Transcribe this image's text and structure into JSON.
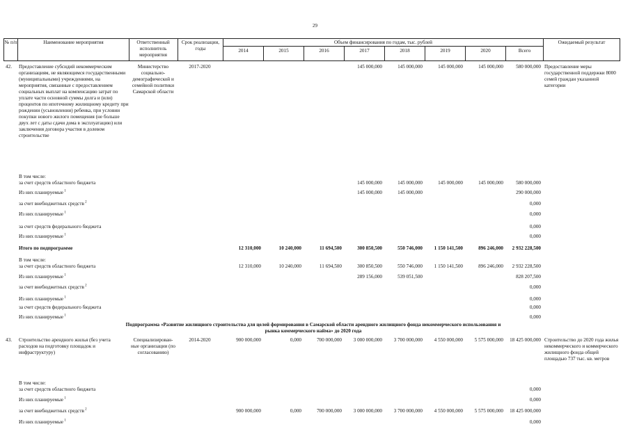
{
  "page_number": "29",
  "header": {
    "col_num": "№ п/п",
    "col_name": "Наименование мероприятия",
    "col_resp": "Ответственный исполнитель мероприятия",
    "col_term": "Срок реализации, годы",
    "col_funding": "Объем финансирования по годам, тыс. рублей",
    "col_result": "Ожидаемый результат",
    "years": [
      "2014",
      "2015",
      "2016",
      "2017",
      "2018",
      "2019",
      "2020",
      "Всего"
    ]
  },
  "rows": [
    {
      "num": "42.",
      "name": "Предоставление субсидий некоммерческим организациям, не являющимся государственными (муниципальными) учреждениями, на мероприятия, связанные с предоставлением социальных выплат на компенсацию затрат по уплате части основной суммы долга и (или) процентов по ипотечному жилищному кредиту при рождении (усыновлении) ребенка, при условии покупки нового жилого помещения (не больше двух лет с даты сдачи дома в эксплуатацию) или заключения договора участия в долевом строительстве",
      "resp": "Министерство социально-демографической и семейной политики Самарской области",
      "term": "2017-2020",
      "values": [
        "",
        "",
        "",
        "145 000,000",
        "145 000,000",
        "145 000,000",
        "145 000,000",
        "580 000,000"
      ],
      "result": "Предоставление меры государственной поддержки 8000 семей граждан указанной категории"
    },
    {
      "num": "",
      "name": "В том числе:\nза счет средств областного бюджета",
      "resp": "",
      "term": "",
      "values": [
        "",
        "",
        "",
        "145 000,000",
        "145 000,000",
        "145 000,000",
        "145 000,000",
        "580 000,000"
      ],
      "result": ""
    },
    {
      "num": "",
      "name": "Из них планируемые",
      "sup": "1",
      "resp": "",
      "term": "",
      "values": [
        "",
        "",
        "",
        "145 000,000",
        "145 000,000",
        "",
        "",
        "290 000,000"
      ],
      "result": ""
    },
    {
      "num": "",
      "name": "за счет внебюджетных средств",
      "sup": "2",
      "resp": "",
      "term": "",
      "values": [
        "",
        "",
        "",
        "",
        "",
        "",
        "",
        "0,000"
      ],
      "result": ""
    },
    {
      "num": "",
      "name": "Из них планируемые",
      "sup": "1",
      "resp": "",
      "term": "",
      "values": [
        "",
        "",
        "",
        "",
        "",
        "",
        "",
        "0,000"
      ],
      "result": ""
    },
    {
      "num": "",
      "name": "за счет средств федерального бюджета",
      "resp": "",
      "term": "",
      "values": [
        "",
        "",
        "",
        "",
        "",
        "",
        "",
        "0,000"
      ],
      "result": ""
    },
    {
      "num": "",
      "name": "Из них планируемые",
      "sup": "1",
      "resp": "",
      "term": "",
      "values": [
        "",
        "",
        "",
        "",
        "",
        "",
        "",
        "0,000"
      ],
      "result": ""
    },
    {
      "num": "",
      "name": "Итого по подпрограмме",
      "bold": true,
      "resp": "",
      "term": "",
      "values": [
        "12 310,000",
        "10 240,000",
        "11 694,500",
        "300 850,500",
        "550 746,000",
        "1 150 141,500",
        "896 246,000",
        "2 932 228,500"
      ],
      "result": ""
    },
    {
      "num": "",
      "name": "В том числе:\nза счет средств областного бюджета",
      "resp": "",
      "term": "",
      "values": [
        "12 310,000",
        "10 240,000",
        "11 694,500",
        "300 850,500",
        "550 746,000",
        "1 150 141,500",
        "896 246,000",
        "2 932 228,500"
      ],
      "result": ""
    },
    {
      "num": "",
      "name": "Из них планируемые",
      "sup": "1",
      "resp": "",
      "term": "",
      "values": [
        "",
        "",
        "",
        "289 156,000",
        "539 051,500",
        "",
        "",
        "828 207,500"
      ],
      "result": ""
    },
    {
      "num": "",
      "name": "за счет внебюджетных средств",
      "sup": "2",
      "resp": "",
      "term": "",
      "values": [
        "",
        "",
        "",
        "",
        "",
        "",
        "",
        "0,000"
      ],
      "result": ""
    },
    {
      "num": "",
      "name": "Из них планируемые",
      "sup": "1",
      "resp": "",
      "term": "",
      "values": [
        "",
        "",
        "",
        "",
        "",
        "",
        "",
        "0,000"
      ],
      "result": ""
    },
    {
      "num": "",
      "name": "за счет средств федерального бюджета",
      "resp": "",
      "term": "",
      "values": [
        "",
        "",
        "",
        "",
        "",
        "",
        "",
        "0,000"
      ],
      "result": ""
    },
    {
      "num": "",
      "name": "Из них планируемые",
      "sup": "1",
      "resp": "",
      "term": "",
      "values": [
        "",
        "",
        "",
        "",
        "",
        "",
        "",
        "0,000"
      ],
      "result": ""
    },
    {
      "num": "43.",
      "name": "Строительство арендного жилья (без учета расходов на подготовку площадок и инфраструктуру)",
      "resp": "Специализирован-ные организации (по согласованию)",
      "term": "2014-2020",
      "values": [
        "900 000,000",
        "0,000",
        "700 000,000",
        "3 000 000,000",
        "3 700 000,000",
        "4 550 000,000",
        "5 575 000,000",
        "18 425 000,000"
      ],
      "result": "Строительство до 2020 года жилья некоммерческого и коммерческого жилищного фонда общей площадью 737 тыс. кв. метров"
    },
    {
      "num": "",
      "name": "В том числе:\nза счет средств областного бюджета",
      "resp": "",
      "term": "",
      "values": [
        "",
        "",
        "",
        "",
        "",
        "",
        "",
        "0,000"
      ],
      "result": ""
    },
    {
      "num": "",
      "name": "Из них планируемые",
      "sup": "1",
      "resp": "",
      "term": "",
      "values": [
        "",
        "",
        "",
        "",
        "",
        "",
        "",
        "0,000"
      ],
      "result": ""
    },
    {
      "num": "",
      "name": "за счет внебюджетных средств",
      "sup": "2",
      "resp": "",
      "term": "",
      "values": [
        "900 000,000",
        "0,000",
        "700 000,000",
        "3 000 000,000",
        "3 700 000,000",
        "4 550 000,000",
        "5 575 000,000",
        "18 425 000,000"
      ],
      "result": ""
    },
    {
      "num": "",
      "name": "Из них планируемые",
      "sup": "1",
      "resp": "",
      "term": "",
      "values": [
        "",
        "",
        "",
        "",
        "",
        "",
        "",
        "0,000"
      ],
      "result": ""
    }
  ],
  "subprogram_title": "Подпрограмма «Развитие жилищного строительства для целей формирования в Самарской области арендного жилищного фонда некоммерческого использования и рынка коммерческого найма» до 2020 года"
}
